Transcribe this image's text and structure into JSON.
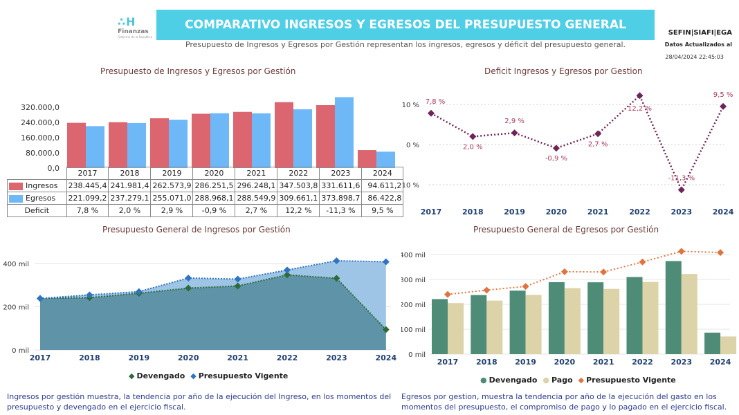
{
  "header": {
    "logo_mark": "∴H",
    "logo_name": "Finanzas",
    "logo_sub": "Gobierno de la República",
    "title": "COMPARATIVO INGRESOS Y EGRESOS DEL PRESUPUESTO GENERAL",
    "subtitle": "Presupuesto de Ingresos y Egresos por Gestión representan los ingresos, egresos y déficit del presupuesto general.",
    "brand": "SEFIN|SIAFI|EGA",
    "updated_label": "Datos Actualizados al",
    "updated_ts": "28/04/2024 22:45:03"
  },
  "colors": {
    "ingresos": "#dc6670",
    "egresos": "#6fb8f8",
    "deficit": "#6d2456",
    "devengado": "#2e6b3a",
    "vigente": "#2f74c0",
    "area_dev": "#5f93a8",
    "area_vig": "#9ec4e6",
    "bar_dev": "#4f8c77",
    "bar_pago": "#ddd3a8",
    "line_vig": "#e0743e"
  },
  "footer": {
    "left": "Ingresos por gestión muestra, la tendencia por año de la ejecución del Ingreso, en los momentos del presupuesto y devengado en el ejercicio fiscal.",
    "right": "Egresos por gestion, muestra la tendencia por año de la ejecución del gasto en los momentos del presupuesto, el compromiso de pago y lo pagado en el ejercicio fiscal."
  },
  "chart_data": [
    {
      "id": "c1",
      "type": "bar",
      "title": "Presupuesto de Ingresos y Egresos por Gestión",
      "categories": [
        "2017",
        "2018",
        "2019",
        "2020",
        "2021",
        "2022",
        "2023",
        "2024"
      ],
      "series": [
        {
          "name": "Ingresos",
          "values": [
            238445.4,
            241981.4,
            262573.9,
            286251.5,
            296248.1,
            347503.8,
            331611.6,
            94611.2
          ],
          "labels": [
            "238.445,4",
            "241.981,4",
            "262.573,9",
            "286.251,5",
            "296.248,1",
            "347.503,8",
            "331.611,6",
            "94.611,2"
          ]
        },
        {
          "name": "Egresos",
          "values": [
            221099.2,
            237279.1,
            255071.0,
            288968.1,
            288549.9,
            309661.1,
            373898.7,
            86422.8
          ],
          "labels": [
            "221.099,2",
            "237.279,1",
            "255.071,0",
            "288.968,1",
            "288.549,9",
            "309.661,1",
            "373.898,7",
            "86.422,8"
          ]
        }
      ],
      "extra_row": {
        "name": "Deficit",
        "labels": [
          "7,8 %",
          "2,0 %",
          "2,9 %",
          "-0,9 %",
          "2,7 %",
          "12,2 %",
          "-11,3 %",
          "9,5 %"
        ]
      },
      "yticks": [
        "0,0",
        "80.000,0",
        "160.000,0",
        "240.000,0",
        "320.000,0"
      ],
      "ylim": [
        0,
        390000
      ]
    },
    {
      "id": "c2",
      "type": "line",
      "title": "Deficit Ingresos y Egresos por Gestion",
      "categories": [
        "2017",
        "2018",
        "2019",
        "2020",
        "2021",
        "2022",
        "2023",
        "2024"
      ],
      "series": [
        {
          "name": "Deficit",
          "values": [
            7.8,
            2.0,
            2.9,
            -0.9,
            2.7,
            12.2,
            -11.3,
            9.5
          ],
          "labels": [
            "7,8 %",
            "2,0 %",
            "2,9 %",
            "-0,9 %",
            "2,7 %",
            "12,2 %",
            "-11,3 %",
            "9,5 %"
          ]
        }
      ],
      "yticks": [
        {
          "v": 10,
          "t": "10 %"
        },
        {
          "v": 0,
          "t": "0 %"
        },
        {
          "v": -10,
          "t": "-10 %"
        }
      ],
      "ylim": [
        -13.5,
        14
      ],
      "grid": true
    },
    {
      "id": "c3",
      "type": "area",
      "title": "Presupuesto General de Ingresos por Gestión",
      "categories": [
        "2017",
        "2018",
        "2019",
        "2020",
        "2021",
        "2022",
        "2023",
        "2024"
      ],
      "series": [
        {
          "name": "Devengado",
          "values": [
            238.4,
            242.0,
            262.6,
            286.3,
            296.2,
            347.5,
            331.6,
            94.6
          ]
        },
        {
          "name": "Presupuesto Vigente",
          "values": [
            238.4,
            255.0,
            270.0,
            333.0,
            328.0,
            370.0,
            413.0,
            408.0
          ]
        }
      ],
      "yticks": [
        {
          "v": 0,
          "t": "0 mil"
        },
        {
          "v": 200,
          "t": "200 mil"
        },
        {
          "v": 400,
          "t": "400 mil"
        }
      ],
      "ylim": [
        0,
        460
      ]
    },
    {
      "id": "c4",
      "type": "bar",
      "title": "Presupuesto General de Egresos por Gestión",
      "categories": [
        "2017",
        "2018",
        "2019",
        "2020",
        "2021",
        "2022",
        "2023",
        "2024"
      ],
      "series": [
        {
          "name": "Devengado",
          "values": [
            221.1,
            237.3,
            255.1,
            289.0,
            288.5,
            309.7,
            373.9,
            86.4
          ]
        },
        {
          "name": "Pago",
          "values": [
            205.0,
            215.0,
            238.0,
            265.0,
            262.0,
            290.0,
            322.0,
            71.0
          ]
        },
        {
          "name": "Presupuesto Vigente",
          "type": "line",
          "values": [
            240.0,
            257.0,
            272.0,
            331.0,
            330.0,
            370.0,
            413.0,
            408.0
          ]
        }
      ],
      "yticks": [
        {
          "v": 0,
          "t": "0 mil"
        },
        {
          "v": 100,
          "t": "100 mil"
        },
        {
          "v": 200,
          "t": "200 mil"
        },
        {
          "v": 300,
          "t": "300 mil"
        },
        {
          "v": 400,
          "t": "400 mil"
        }
      ],
      "ylim": [
        0,
        420
      ]
    }
  ]
}
